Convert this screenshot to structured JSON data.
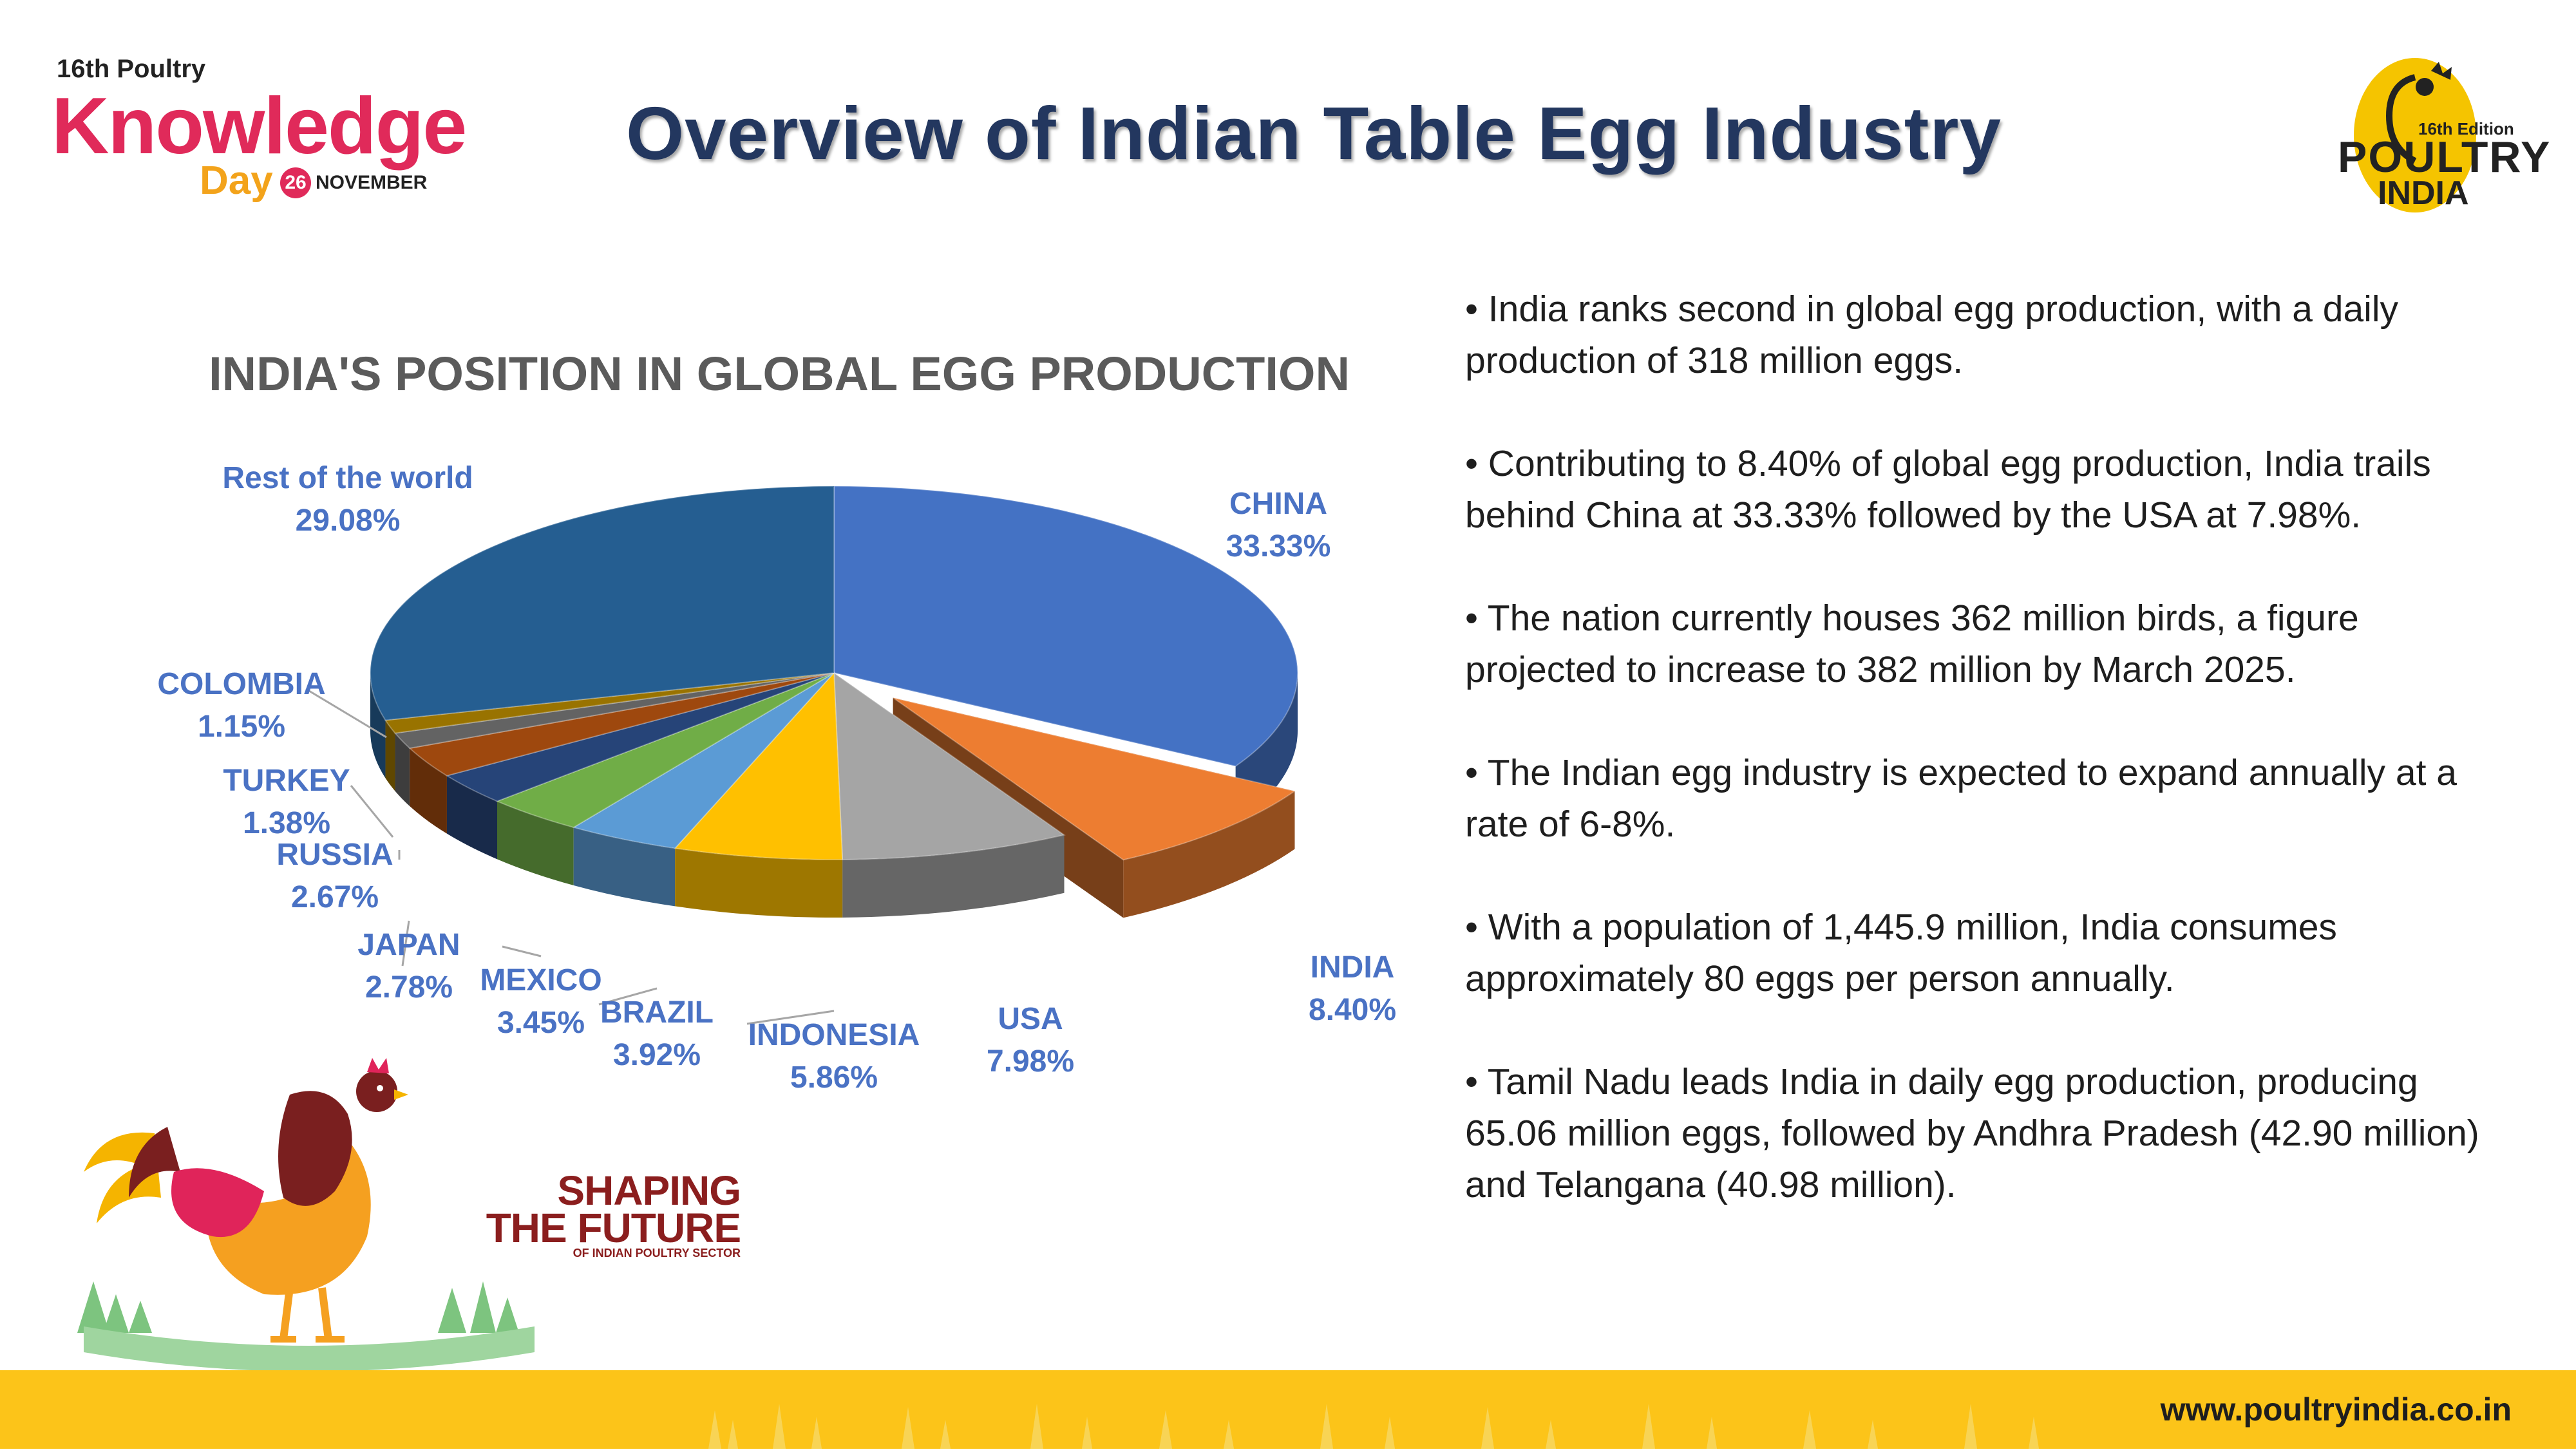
{
  "page_title": "Overview of Indian Table Egg Industry",
  "logo_left": {
    "top": "16th Poultry",
    "main": "Knowledge",
    "day": "Day",
    "date": "26",
    "month": "NOVEMBER"
  },
  "logo_right": {
    "edition": "16th Edition",
    "word": "POULTRY",
    "country": "INDIA"
  },
  "tagline": {
    "line1": "SHAPING",
    "line2": "THE FUTURE",
    "line3": "OF INDIAN POULTRY SECTOR"
  },
  "website": "www.poultryindia.co.in",
  "bullets": [
    "• India ranks second in global egg production, with a daily production of 318 million eggs.",
    "• Contributing to 8.40% of global egg production, India trails behind China at 33.33% followed by the USA at 7.98%.",
    "• The nation currently houses 362 million birds, a figure projected to increase to 382 million by March 2025.",
    "• The Indian egg industry is expected to expand annually at a rate of 6-8%.",
    "• With a population of 1,445.9 million, India consumes approximately 80 eggs per person annually.",
    "• Tamil Nadu leads India in daily egg production, producing 65.06 million eggs, followed by Andhra Pradesh (42.90 million) and Telangana (40.98 million)."
  ],
  "chart_data": {
    "type": "pie",
    "title": "INDIA'S POSITION IN GLOBAL EGG PRODUCTION",
    "categories": [
      "CHINA",
      "INDIA",
      "USA",
      "INDONESIA",
      "BRAZIL",
      "MEXICO",
      "JAPAN",
      "RUSSIA",
      "TURKEY",
      "COLOMBIA",
      "Rest of the world"
    ],
    "values": [
      33.33,
      8.4,
      7.98,
      5.86,
      3.92,
      3.45,
      2.78,
      2.67,
      1.38,
      1.15,
      29.08
    ],
    "value_labels": [
      "33.33%",
      "8.40%",
      "7.98%",
      "5.86%",
      "3.92%",
      "3.45%",
      "2.78%",
      "2.67%",
      "1.38%",
      "1.15%",
      "29.08%"
    ],
    "exploded": [
      "INDIA"
    ],
    "colors": [
      "#4472c4",
      "#ed7d31",
      "#a5a5a5",
      "#ffc000",
      "#5b9bd5",
      "#70ad47",
      "#264478",
      "#9e480e",
      "#636363",
      "#997300",
      "#255e91"
    ],
    "label_color": "#4a72c4"
  }
}
